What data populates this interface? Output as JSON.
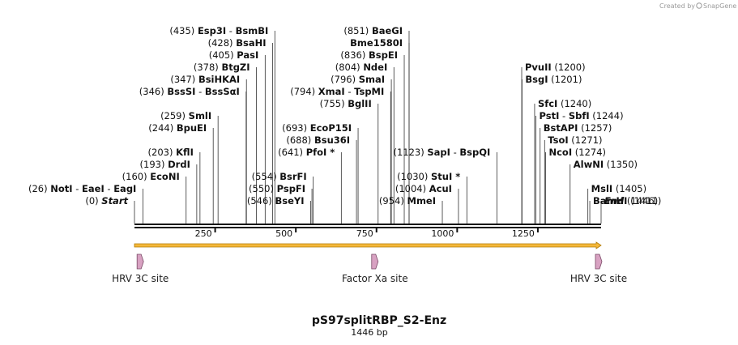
{
  "credit": {
    "prefix": "Created by",
    "brand": "SnapGene"
  },
  "title": "pS97splitRBP_S2-Enz",
  "length_label": "1446 bp",
  "sequence_length": 1446,
  "ticks": [
    250,
    500,
    750,
    1000,
    1250
  ],
  "colors": {
    "backbone": "#111111",
    "orf_fill": "#f5b83a",
    "orf_stroke": "#b07800",
    "feature": "#d8a2c2",
    "feature_stroke": "#7a4a66"
  },
  "sites": [
    {
      "pos": 26,
      "pos_text": "(26)",
      "names": [
        "NotI",
        "EaeI",
        "EagI"
      ],
      "row": 1,
      "side": "left"
    },
    {
      "pos": 0,
      "pos_text": "(0)",
      "names": [
        "Start"
      ],
      "row": 0,
      "side": "left",
      "italic": true
    },
    {
      "pos": 160,
      "pos_text": "(160)",
      "names": [
        "EcoNI"
      ],
      "row": 2,
      "side": "left"
    },
    {
      "pos": 193,
      "pos_text": "(193)",
      "names": [
        "DrdI"
      ],
      "row": 3,
      "side": "left"
    },
    {
      "pos": 203,
      "pos_text": "(203)",
      "names": [
        "KflI"
      ],
      "row": 4,
      "side": "left"
    },
    {
      "pos": 244,
      "pos_text": "(244)",
      "names": [
        "BpuEI"
      ],
      "row": 6,
      "side": "left"
    },
    {
      "pos": 259,
      "pos_text": "(259)",
      "names": [
        "SmlI"
      ],
      "row": 7,
      "side": "left"
    },
    {
      "pos": 346,
      "pos_text": "(346)",
      "names": [
        "BssSI",
        "BssSαI"
      ],
      "row": 9,
      "side": "left"
    },
    {
      "pos": 347,
      "pos_text": "(347)",
      "names": [
        "BsiHKAI"
      ],
      "row": 10,
      "side": "left"
    },
    {
      "pos": 378,
      "pos_text": "(378)",
      "names": [
        "BtgZI"
      ],
      "row": 11,
      "side": "left"
    },
    {
      "pos": 405,
      "pos_text": "(405)",
      "names": [
        "PasI"
      ],
      "row": 12,
      "side": "left"
    },
    {
      "pos": 428,
      "pos_text": "(428)",
      "names": [
        "BsaHI"
      ],
      "row": 13,
      "side": "left"
    },
    {
      "pos": 435,
      "pos_text": "(435)",
      "names": [
        "Esp3I",
        "BsmBI"
      ],
      "row": 14,
      "side": "left"
    },
    {
      "pos": 546,
      "pos_text": "(546)",
      "names": [
        "BseYI"
      ],
      "row": 0,
      "side": "left"
    },
    {
      "pos": 550,
      "pos_text": "(550)",
      "names": [
        "PspFI"
      ],
      "row": 1,
      "side": "left"
    },
    {
      "pos": 554,
      "pos_text": "(554)",
      "names": [
        "BsrFI"
      ],
      "row": 2,
      "side": "left"
    },
    {
      "pos": 641,
      "pos_text": "(641)",
      "names": [
        "PfoI *"
      ],
      "row": 4,
      "side": "left"
    },
    {
      "pos": 688,
      "pos_text": "(688)",
      "names": [
        "Bsu36I"
      ],
      "row": 5,
      "side": "left"
    },
    {
      "pos": 693,
      "pos_text": "(693)",
      "names": [
        "EcoP15I"
      ],
      "row": 6,
      "side": "left"
    },
    {
      "pos": 755,
      "pos_text": "(755)",
      "names": [
        "BglII"
      ],
      "row": 8,
      "side": "left"
    },
    {
      "pos": 794,
      "pos_text": "(794)",
      "names": [
        "XmaI",
        "TspMI"
      ],
      "row": 9,
      "side": "left"
    },
    {
      "pos": 796,
      "pos_text": "(796)",
      "names": [
        "SmaI"
      ],
      "row": 10,
      "side": "left"
    },
    {
      "pos": 804,
      "pos_text": "(804)",
      "names": [
        "NdeI"
      ],
      "row": 11,
      "side": "left"
    },
    {
      "pos": 836,
      "pos_text": "(836)",
      "names": [
        "BspEI"
      ],
      "row": 12,
      "side": "left"
    },
    {
      "pos": 851,
      "pos_text": "",
      "names": [
        "Bme1580I"
      ],
      "row": 13,
      "side": "left"
    },
    {
      "pos": 851,
      "pos_text": "(851)",
      "names": [
        "BaeGI"
      ],
      "row": 14,
      "side": "left"
    },
    {
      "pos": 954,
      "pos_text": "(954)",
      "names": [
        "MmeI"
      ],
      "row": 0,
      "side": "left"
    },
    {
      "pos": 1004,
      "pos_text": "(1004)",
      "names": [
        "AcuI"
      ],
      "row": 1,
      "side": "left"
    },
    {
      "pos": 1030,
      "pos_text": "(1030)",
      "names": [
        "StuI *"
      ],
      "row": 2,
      "side": "left"
    },
    {
      "pos": 1123,
      "pos_text": "(1123)",
      "names": [
        "SapI",
        "BspQI"
      ],
      "row": 4,
      "side": "left"
    },
    {
      "pos": 1200,
      "pos_text": "(1200)",
      "names": [
        "PvuII"
      ],
      "row": 11,
      "side": "right"
    },
    {
      "pos": 1201,
      "pos_text": "(1201)",
      "names": [
        "BsgI"
      ],
      "row": 10,
      "side": "right"
    },
    {
      "pos": 1240,
      "pos_text": "(1240)",
      "names": [
        "SfcI"
      ],
      "row": 8,
      "side": "right"
    },
    {
      "pos": 1244,
      "pos_text": "(1244)",
      "names": [
        "PstI",
        "SbfI"
      ],
      "row": 7,
      "side": "right"
    },
    {
      "pos": 1257,
      "pos_text": "(1257)",
      "names": [
        "BstAPI"
      ],
      "row": 6,
      "side": "right"
    },
    {
      "pos": 1271,
      "pos_text": "(1271)",
      "names": [
        "TsoI"
      ],
      "row": 5,
      "side": "right"
    },
    {
      "pos": 1274,
      "pos_text": "(1274)",
      "names": [
        "NcoI"
      ],
      "row": 4,
      "side": "right"
    },
    {
      "pos": 1350,
      "pos_text": "(1350)",
      "names": [
        "AlwNI"
      ],
      "row": 3,
      "side": "right"
    },
    {
      "pos": 1405,
      "pos_text": "(1405)",
      "names": [
        "MslI"
      ],
      "row": 1,
      "side": "right"
    },
    {
      "pos": 1411,
      "pos_text": "(1411)",
      "names": [
        "BamHI"
      ],
      "row": 0,
      "side": "right"
    },
    {
      "pos": 1446,
      "pos_text": "(1446)",
      "names": [
        "End"
      ],
      "row": -1,
      "side": "right",
      "italic": true
    }
  ],
  "features": [
    {
      "name": "HRV 3C site",
      "pos": 8
    },
    {
      "name": "Factor Xa site",
      "pos": 735
    },
    {
      "name": "HRV 3C site",
      "pos": 1436
    }
  ]
}
